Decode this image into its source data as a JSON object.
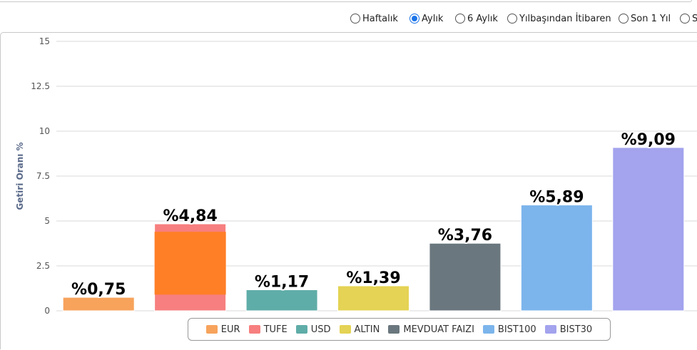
{
  "period_options": [
    {
      "label": "Haftalık",
      "checked": false
    },
    {
      "label": "Aylık",
      "checked": true
    },
    {
      "label": "6 Aylık",
      "checked": false
    },
    {
      "label": "Yılbaşından İtibaren",
      "checked": false
    },
    {
      "label": "Son 1 Yıl",
      "checked": false
    },
    {
      "label": "S",
      "checked": false
    }
  ],
  "chart_data": {
    "type": "bar",
    "ylabel": "Getiri Oranı %",
    "ylim": [
      0,
      15
    ],
    "yticks": [
      "0",
      "2.5",
      "5",
      "7.5",
      "10",
      "12.5",
      "15"
    ],
    "grid": true,
    "legend_position": "bottom",
    "bars": [
      {
        "name": "EUR",
        "value": 0.75,
        "label": "%0,75",
        "color": "#f7a35c"
      },
      {
        "name": "TUFE",
        "value": 4.84,
        "label": "%4,84",
        "color": "#f77f7f",
        "overlay_color": "#ff7f27",
        "overlay_value": 4.4
      },
      {
        "name": "USD",
        "value": 1.17,
        "label": "%1,17",
        "color": "#5fada8"
      },
      {
        "name": "ALTIN",
        "value": 1.39,
        "label": "%1,39",
        "color": "#e4d354"
      },
      {
        "name": "MEVDUAT FAIZI",
        "value": 3.76,
        "label": "%3,76",
        "color": "#6a777e"
      },
      {
        "name": "BIST100",
        "value": 5.89,
        "label": "%5,89",
        "color": "#7cb5ec"
      },
      {
        "name": "BIST30",
        "value": 9.09,
        "label": "%9,09",
        "color": "#a3a3ee"
      }
    ]
  }
}
